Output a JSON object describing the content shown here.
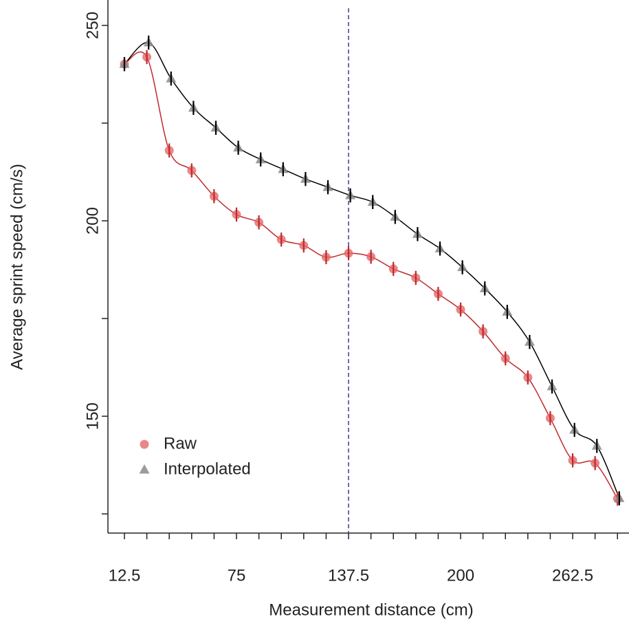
{
  "chart_data": {
    "type": "scatter",
    "x_label": "Measurement distance (cm)",
    "y_label": "Average sprint speed (cm/s)",
    "xlim": [
      3.3,
      292
    ],
    "ylim": [
      120.1,
      256.5
    ],
    "xticks": [
      12.5,
      75,
      137.5,
      200,
      262.5
    ],
    "xminorticks": [
      25,
      37.5,
      50,
      62.5,
      87.5,
      100,
      112.5,
      125,
      150,
      162.5,
      175,
      187.5,
      212.5,
      225,
      237.5,
      250,
      275,
      287.5
    ],
    "yticks": [
      150,
      200,
      250
    ],
    "yminorticks": [
      125,
      175,
      225
    ],
    "vline": 137.5,
    "vline_color": "#3a3a9a",
    "legend": "bottom-left",
    "series": [
      {
        "name": "Raw",
        "color": "#e26a6c",
        "line_color": "#c0282a",
        "marker": "circle",
        "x": [
          12.5,
          25,
          37.5,
          50,
          62.5,
          75,
          87.5,
          100,
          112.5,
          125,
          137.5,
          150,
          162.5,
          175,
          187.5,
          200,
          212.5,
          225,
          237.5,
          250,
          262.5,
          275,
          287.5
        ],
        "values": [
          240.1,
          241.9,
          218,
          212.9,
          206.3,
          201.6,
          199.6,
          195.2,
          193.7,
          190.7,
          191.7,
          190.8,
          187.7,
          185.4,
          181.3,
          177.3,
          171.7,
          164.8,
          159.9,
          149.5,
          138.7,
          138,
          128.9
        ],
        "errors": [
          1.8,
          1.8,
          1.8,
          1.8,
          1.8,
          1.8,
          1.8,
          1.8,
          1.8,
          1.8,
          1.8,
          1.8,
          1.8,
          1.8,
          1.8,
          1.8,
          1.8,
          1.8,
          1.8,
          1.8,
          1.8,
          1.8,
          1.8
        ]
      },
      {
        "name": "Interpolated",
        "color": "#8a8a8a",
        "line_color": "#000000",
        "marker": "triangle",
        "x": [
          12.5,
          26,
          38.5,
          51,
          63.5,
          76,
          88.5,
          101,
          113.5,
          126,
          138.5,
          151,
          163.5,
          176,
          188.5,
          201,
          213.5,
          226,
          238.5,
          251,
          263.5,
          276,
          288.5
        ],
        "values": [
          240.1,
          245.6,
          236.4,
          228.9,
          223.8,
          218.7,
          215.7,
          213.2,
          210.7,
          208.6,
          206.5,
          204.8,
          201,
          196.6,
          192.9,
          188.1,
          182.7,
          176.7,
          169,
          157.6,
          146.5,
          142.4,
          129
        ],
        "errors": [
          1.8,
          1.8,
          1.8,
          1.8,
          1.8,
          1.8,
          1.8,
          1.8,
          1.8,
          1.8,
          1.8,
          1.8,
          1.8,
          1.8,
          1.8,
          1.8,
          1.8,
          1.8,
          1.8,
          1.8,
          1.8,
          1.8,
          1.8
        ]
      }
    ]
  }
}
